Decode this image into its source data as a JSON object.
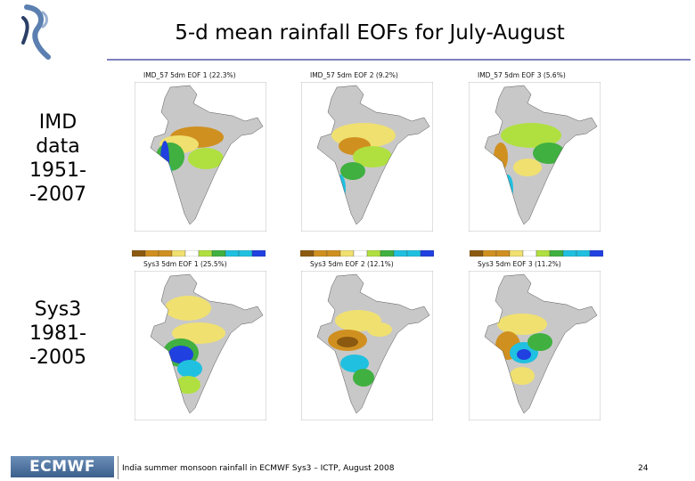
{
  "slide": {
    "title": "5-d mean rainfall EOFs for July-August",
    "row_labels": [
      {
        "lines": [
          "IMD",
          "data",
          "1951-",
          "-2007"
        ]
      },
      {
        "lines": [
          "Sys3",
          "1981-",
          "-2005"
        ]
      }
    ],
    "panels": [
      {
        "title": "IMD_57   5dm EOF 1 (22.3%)"
      },
      {
        "title": "IMD_57   5dm EOF 2 (9.2%)"
      },
      {
        "title": "IMD_57   5dm EOF 3 (5.6%)"
      },
      {
        "title": "Sys3   5dm EOF 1 (25.5%)"
      },
      {
        "title": "Sys3   5dm EOF 2 (12.1%)"
      },
      {
        "title": "Sys3   5dm EOF 3 (11.2%)"
      }
    ],
    "footer": {
      "logo_text": "ECMWF",
      "caption": "India summer monsoon rainfall in ECMWF Sys3 – ICTP, August 2008",
      "page_number": "24"
    }
  },
  "colors": {
    "title_rule": "#8080c0",
    "land": "#c8c8c8",
    "ocean": "#ffffff",
    "neg_strong": "#8b5a10",
    "neg": "#d09020",
    "neg_weak": "#f0e070",
    "pos_weak": "#b0e040",
    "pos": "#40b040",
    "pos_strong": "#20c0e0",
    "pos_max": "#2040e0"
  }
}
